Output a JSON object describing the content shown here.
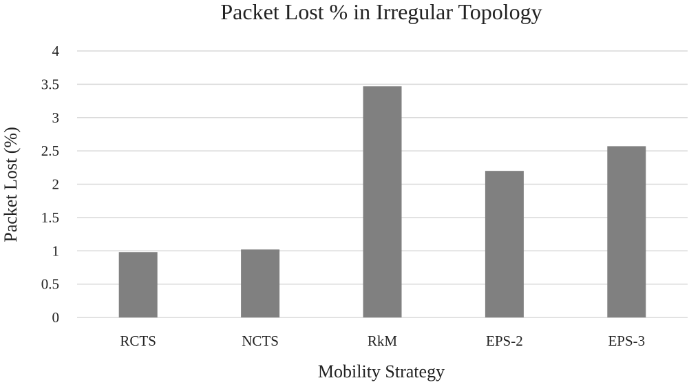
{
  "chart_data": {
    "type": "bar",
    "title": "Packet Lost % in Irregular Topology",
    "xlabel": "Mobility Strategy",
    "ylabel": "Packet Lost (%)",
    "categories": [
      "RCTS",
      "NCTS",
      "RkM",
      "EPS-2",
      "EPS-3"
    ],
    "values": [
      0.98,
      1.02,
      3.47,
      2.2,
      2.57
    ],
    "ylim": [
      0,
      4
    ],
    "yticks": [
      "0",
      "0.5",
      "1",
      "1.5",
      "2",
      "2.5",
      "3",
      "3.5",
      "4"
    ],
    "grid": true,
    "bar_color": "#808080",
    "grid_color": "#d9d9d9"
  }
}
